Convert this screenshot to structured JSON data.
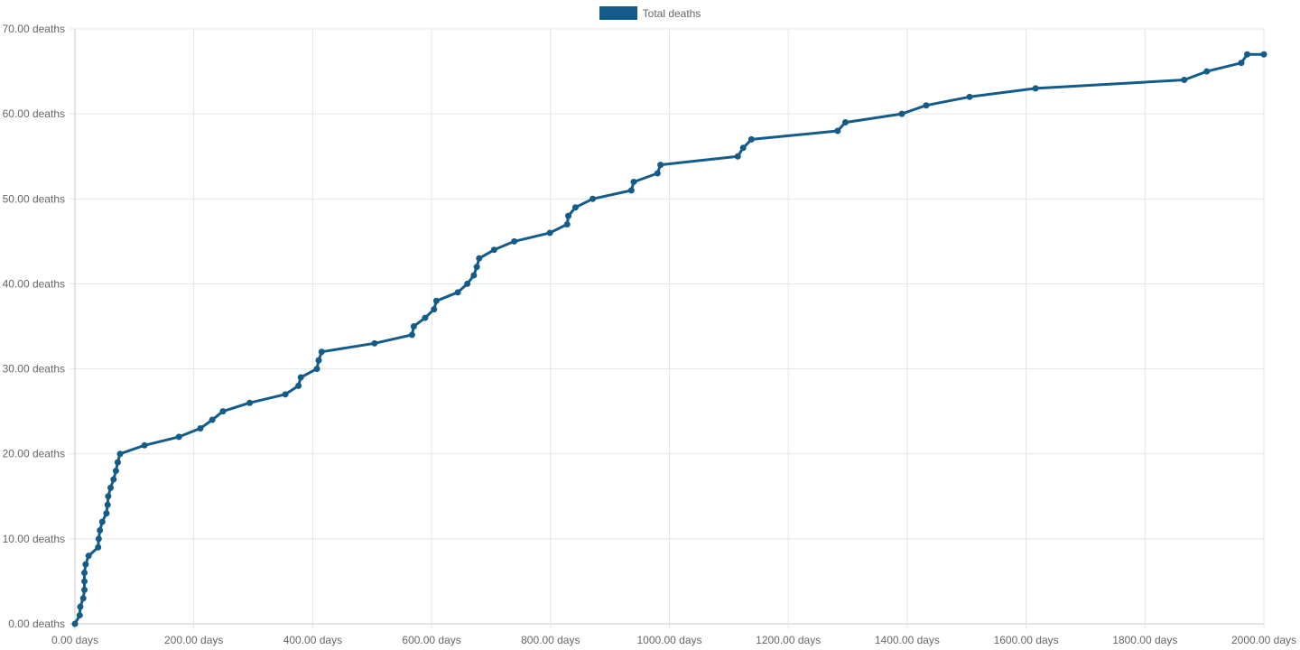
{
  "legend": {
    "label": "Total deaths",
    "color": "#135c8a"
  },
  "chart_data": {
    "type": "line",
    "title": "",
    "xlabel": "",
    "ylabel": "",
    "xlim": [
      0,
      2000
    ],
    "ylim": [
      0,
      70
    ],
    "x_ticks": [
      0,
      200,
      400,
      600,
      800,
      1000,
      1200,
      1400,
      1600,
      1800,
      2000
    ],
    "y_ticks": [
      0,
      10,
      20,
      30,
      40,
      50,
      60,
      70
    ],
    "x_tick_labels": [
      "0.00 days",
      "200.00 days",
      "400.00 days",
      "600.00 days",
      "800.00 days",
      "1000.00 days",
      "1200.00 days",
      "1400.00 days",
      "1600.00 days",
      "1800.00 days",
      "2000.00 days"
    ],
    "y_tick_labels": [
      "0.00 deaths",
      "10.00 deaths",
      "20.00 deaths",
      "30.00 deaths",
      "40.00 deaths",
      "50.00 deaths",
      "60.00 deaths",
      "70.00 deaths"
    ],
    "grid": true,
    "legend_position": "top-center",
    "series": [
      {
        "name": "Total deaths",
        "color": "#135c8a",
        "points": [
          [
            0,
            0
          ],
          [
            8,
            1
          ],
          [
            9,
            2
          ],
          [
            14,
            3
          ],
          [
            16,
            4
          ],
          [
            16,
            5
          ],
          [
            16,
            6
          ],
          [
            18,
            7
          ],
          [
            23,
            8
          ],
          [
            39,
            9
          ],
          [
            40,
            10
          ],
          [
            42,
            11
          ],
          [
            46,
            12
          ],
          [
            53,
            13
          ],
          [
            55,
            14
          ],
          [
            56,
            15
          ],
          [
            60,
            16
          ],
          [
            65,
            17
          ],
          [
            69,
            18
          ],
          [
            72,
            19
          ],
          [
            76,
            20
          ],
          [
            117,
            21
          ],
          [
            175,
            22
          ],
          [
            211,
            23
          ],
          [
            231,
            24
          ],
          [
            249,
            25
          ],
          [
            294,
            26
          ],
          [
            354,
            27
          ],
          [
            376,
            28
          ],
          [
            380,
            29
          ],
          [
            407,
            30
          ],
          [
            410,
            31
          ],
          [
            415,
            32
          ],
          [
            504,
            33
          ],
          [
            567,
            34
          ],
          [
            570,
            35
          ],
          [
            589,
            36
          ],
          [
            604,
            37
          ],
          [
            608,
            38
          ],
          [
            644,
            39
          ],
          [
            660,
            40
          ],
          [
            671,
            41
          ],
          [
            676,
            42
          ],
          [
            680,
            43
          ],
          [
            705,
            44
          ],
          [
            739,
            45
          ],
          [
            799,
            46
          ],
          [
            828,
            47
          ],
          [
            830,
            48
          ],
          [
            842,
            49
          ],
          [
            871,
            50
          ],
          [
            936,
            51
          ],
          [
            940,
            52
          ],
          [
            980,
            53
          ],
          [
            985,
            54
          ],
          [
            1115,
            55
          ],
          [
            1124,
            56
          ],
          [
            1138,
            57
          ],
          [
            1283,
            58
          ],
          [
            1296,
            59
          ],
          [
            1391,
            60
          ],
          [
            1432,
            61
          ],
          [
            1505,
            62
          ],
          [
            1616,
            63
          ],
          [
            1866,
            64
          ],
          [
            1904,
            65
          ],
          [
            1962,
            66
          ],
          [
            1972,
            67
          ],
          [
            2000,
            67
          ]
        ]
      }
    ]
  }
}
